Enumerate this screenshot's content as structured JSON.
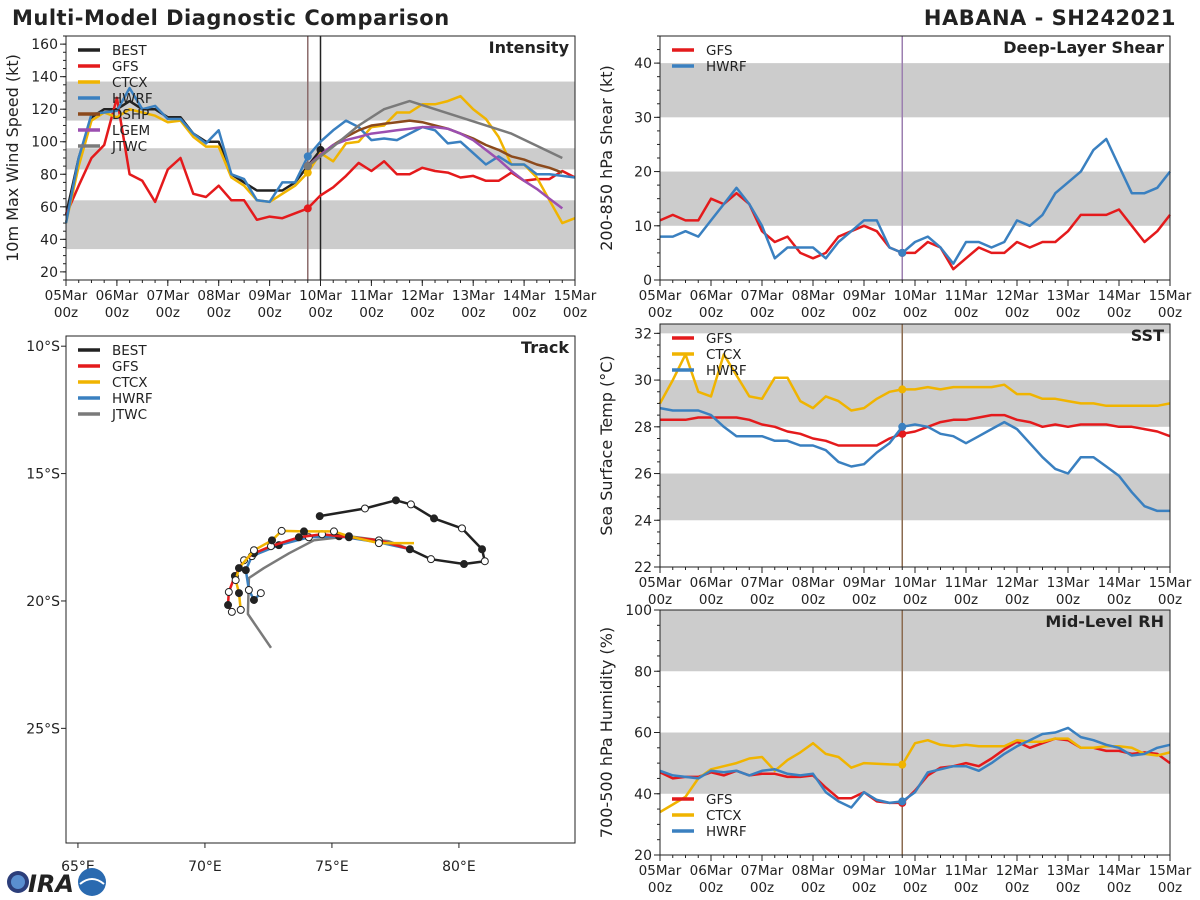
{
  "header": {
    "title": "Multi-Model Diagnostic Comparison",
    "storm": "HABANA - SH242021"
  },
  "logo": {
    "text": "CIRA"
  },
  "time_axis": {
    "days": [
      "05Mar",
      "06Mar",
      "07Mar",
      "08Mar",
      "09Mar",
      "10Mar",
      "11Mar",
      "12Mar",
      "13Mar",
      "14Mar",
      "15Mar"
    ],
    "hour_label": "00z",
    "range_hours": [
      0,
      240
    ]
  },
  "colors": {
    "BEST": "#222222",
    "GFS": "#e41a1c",
    "CTCX": "#f0b400",
    "HWRF": "#3a80c0",
    "DSHP": "#8c4a1c",
    "LGEM": "#9b4fb0",
    "JTWC": "#7a7a7a",
    "band": "#cccccc"
  },
  "chart_data": [
    {
      "id": "intensity",
      "type": "line",
      "title": "Intensity",
      "ylabel": "10m Max Wind Speed (kt)",
      "ylim": [
        15,
        165
      ],
      "yticks": [
        20,
        40,
        60,
        80,
        100,
        120,
        140,
        160
      ],
      "bands": [
        [
          34,
          64
        ],
        [
          83,
          96
        ],
        [
          113,
          137
        ]
      ],
      "vlines": [
        {
          "hour": 114,
          "color": "#8b6b6b"
        },
        {
          "hour": 120,
          "color": "#222222"
        }
      ],
      "analysis_hour": 114,
      "series": [
        {
          "name": "BEST",
          "start_hour": 0,
          "values": [
            55,
            90,
            115,
            120,
            120,
            125,
            120,
            120,
            115,
            115,
            105,
            100,
            100,
            80,
            75,
            70,
            70,
            70,
            75,
            85,
            95
          ]
        },
        {
          "name": "GFS",
          "start_hour": 0,
          "values": [
            55,
            73,
            90,
            98,
            127,
            80,
            76,
            63,
            83,
            90,
            68,
            66,
            73,
            64,
            64,
            52,
            54,
            53,
            56,
            59,
            67,
            72,
            79,
            87,
            82,
            88,
            80,
            80,
            84,
            82,
            81,
            78,
            79,
            76,
            76,
            81,
            76,
            77,
            77,
            82,
            78
          ]
        },
        {
          "name": "CTCX",
          "start_hour": 0,
          "values": [
            50,
            85,
            113,
            118,
            115,
            120,
            118,
            116,
            112,
            113,
            103,
            97,
            97,
            78,
            73,
            64,
            63,
            68,
            73,
            81,
            93,
            88,
            99,
            100,
            109,
            110,
            118,
            118,
            123,
            123,
            125,
            128,
            120,
            114,
            103,
            86,
            86,
            78,
            64,
            50,
            53
          ]
        },
        {
          "name": "HWRF",
          "start_hour": 0,
          "values": [
            50,
            90,
            117,
            118,
            119,
            133,
            120,
            122,
            114,
            114,
            105,
            99,
            107,
            80,
            77,
            64,
            63,
            75,
            75,
            91,
            100,
            107,
            113,
            109,
            101,
            102,
            101,
            105,
            109,
            107,
            99,
            100,
            93,
            86,
            91,
            86,
            86,
            80,
            80,
            79,
            78
          ]
        },
        {
          "name": "DSHP",
          "start_hour": 114,
          "values": [
            85,
            92,
            98,
            103,
            107,
            110,
            111,
            112,
            113,
            112,
            110,
            108,
            105,
            102,
            98,
            95,
            91,
            89,
            86,
            84,
            81
          ]
        },
        {
          "name": "LGEM",
          "start_hour": 114,
          "values": [
            85,
            92,
            98,
            101,
            103,
            105,
            106,
            107,
            108,
            109,
            109,
            108,
            105,
            101,
            95,
            89,
            82,
            76,
            71,
            65,
            59
          ]
        },
        {
          "name": "JTWC",
          "hours": [
            114,
            126,
            138,
            150,
            162,
            186,
            210,
            234
          ],
          "values": [
            85,
            97,
            110,
            120,
            125,
            115,
            105,
            90
          ]
        }
      ]
    },
    {
      "id": "shear",
      "type": "line",
      "title": "Deep-Layer Shear",
      "ylabel": "200-850 hPa Shear (kt)",
      "ylim": [
        0,
        45
      ],
      "yticks": [
        0,
        10,
        20,
        30,
        40
      ],
      "bands": [
        [
          10,
          20
        ],
        [
          30,
          40
        ]
      ],
      "vlines": [
        {
          "hour": 114,
          "color": "#9c7fb0"
        }
      ],
      "analysis_hour": 114,
      "series": [
        {
          "name": "GFS",
          "start_hour": 0,
          "values": [
            11,
            12,
            11,
            11,
            15,
            14,
            16,
            14,
            9,
            7,
            8,
            5,
            4,
            5,
            8,
            9,
            10,
            9,
            6,
            5,
            5,
            7,
            6,
            2,
            4,
            6,
            5,
            5,
            7,
            6,
            7,
            7,
            9,
            12,
            12,
            12,
            13,
            10,
            7,
            9,
            12
          ]
        },
        {
          "name": "HWRF",
          "start_hour": 0,
          "values": [
            8,
            8,
            9,
            8,
            11,
            14,
            17,
            14,
            10,
            4,
            6,
            6,
            6,
            4,
            7,
            9,
            11,
            11,
            6,
            5,
            7,
            8,
            6,
            3,
            7,
            7,
            6,
            7,
            11,
            10,
            12,
            16,
            18,
            20,
            24,
            26,
            21,
            16,
            16,
            17,
            20
          ]
        }
      ]
    },
    {
      "id": "sst",
      "type": "line",
      "title": "SST",
      "ylabel": "Sea Surface Temp (°C)",
      "ylim": [
        22,
        32.4
      ],
      "yticks": [
        22,
        24,
        26,
        28,
        30,
        32
      ],
      "bands": [
        [
          24,
          26
        ],
        [
          28,
          30
        ],
        [
          32,
          32.4
        ]
      ],
      "vlines": [
        {
          "hour": 114,
          "color": "#8b6b50"
        }
      ],
      "analysis_hour": 114,
      "series": [
        {
          "name": "GFS",
          "start_hour": 0,
          "values": [
            28.3,
            28.3,
            28.3,
            28.4,
            28.4,
            28.4,
            28.4,
            28.3,
            28.1,
            28.0,
            27.8,
            27.7,
            27.5,
            27.4,
            27.2,
            27.2,
            27.2,
            27.2,
            27.5,
            27.7,
            27.8,
            28.0,
            28.2,
            28.3,
            28.3,
            28.4,
            28.5,
            28.5,
            28.3,
            28.2,
            28.0,
            28.1,
            28.0,
            28.1,
            28.1,
            28.1,
            28.0,
            28.0,
            27.9,
            27.8,
            27.6
          ]
        },
        {
          "name": "CTCX",
          "start_hour": 0,
          "values": [
            29.0,
            30.0,
            31.1,
            29.5,
            29.3,
            31.1,
            30.2,
            29.3,
            29.2,
            30.1,
            30.1,
            29.1,
            28.8,
            29.3,
            29.1,
            28.7,
            28.8,
            29.2,
            29.5,
            29.6,
            29.6,
            29.7,
            29.6,
            29.7,
            29.7,
            29.7,
            29.7,
            29.8,
            29.4,
            29.4,
            29.2,
            29.2,
            29.1,
            29.0,
            29.0,
            28.9,
            28.9,
            28.9,
            28.9,
            28.9,
            29.0
          ]
        },
        {
          "name": "HWRF",
          "start_hour": 0,
          "values": [
            28.8,
            28.7,
            28.7,
            28.7,
            28.5,
            28.0,
            27.6,
            27.6,
            27.6,
            27.4,
            27.4,
            27.2,
            27.2,
            27.0,
            26.5,
            26.3,
            26.4,
            26.9,
            27.3,
            28.0,
            28.1,
            28.0,
            27.7,
            27.6,
            27.3,
            27.6,
            27.9,
            28.2,
            27.9,
            27.3,
            26.7,
            26.2,
            26.0,
            26.7,
            26.7,
            26.3,
            25.9,
            25.2,
            24.6,
            24.4,
            24.4
          ]
        }
      ]
    },
    {
      "id": "rh",
      "type": "line",
      "title": "Mid-Level RH",
      "ylabel": "700-500 hPa Humidity (%)",
      "ylim": [
        20,
        100
      ],
      "yticks": [
        20,
        40,
        60,
        80,
        100
      ],
      "bands": [
        [
          40,
          60
        ],
        [
          80,
          100
        ]
      ],
      "vlines": [
        {
          "hour": 114,
          "color": "#8b6b50"
        }
      ],
      "analysis_hour": 114,
      "legend_position": "bottom-left",
      "series": [
        {
          "name": "GFS",
          "start_hour": 0,
          "values": [
            47,
            45,
            45.5,
            45.5,
            47,
            46,
            47.5,
            46,
            46.5,
            46.5,
            45.5,
            45.5,
            46,
            42,
            38.5,
            38.5,
            40.5,
            37.5,
            37,
            37,
            41,
            46,
            48.5,
            49,
            50,
            49,
            51.5,
            54.5,
            57,
            55,
            56.5,
            58,
            57.5,
            55,
            55,
            54,
            54,
            53,
            53.5,
            53,
            50
          ]
        },
        {
          "name": "CTCX",
          "start_hour": 0,
          "values": [
            34,
            36.5,
            39,
            45,
            48,
            49,
            50,
            51.5,
            52,
            47.5,
            51,
            53.5,
            56.5,
            53,
            52,
            48.5,
            50,
            49.8,
            49.6,
            49.5,
            56.5,
            57.5,
            56,
            55.5,
            56,
            55.5,
            55.5,
            55.5,
            57.5,
            57,
            57,
            58,
            58,
            55,
            55,
            55.5,
            55.5,
            55,
            53,
            52.5,
            53.5
          ]
        },
        {
          "name": "HWRF",
          "start_hour": 0,
          "values": [
            47.5,
            46,
            45.5,
            45,
            47.5,
            47,
            47.5,
            46,
            47.5,
            48,
            46.5,
            46,
            46.5,
            40.5,
            37.5,
            35.5,
            40.5,
            38,
            37,
            37.5,
            40.5,
            47,
            48,
            49,
            49,
            47.5,
            50,
            53,
            55.5,
            57.5,
            59.5,
            60,
            61.5,
            58.5,
            57.5,
            56,
            55,
            52.5,
            53,
            55,
            56
          ]
        }
      ]
    },
    {
      "id": "track",
      "type": "line",
      "title": "Track",
      "xlim_lon_e": [
        64.53,
        84.57
      ],
      "ylim_lat_s": [
        9.6,
        29.5
      ],
      "lon_ticks": [
        {
          "v": 65,
          "label": "65°E"
        },
        {
          "v": 70,
          "label": "70°E"
        },
        {
          "v": 75,
          "label": "75°E"
        },
        {
          "v": 80,
          "label": "80°E"
        }
      ],
      "lat_ticks": [
        {
          "v": 10,
          "label": "10°S"
        },
        {
          "v": 15,
          "label": "15°S"
        },
        {
          "v": 20,
          "label": "20°S"
        },
        {
          "v": 25,
          "label": "25°S"
        }
      ],
      "series": [
        {
          "name": "BEST",
          "lon": [
            74.52,
            76.3,
            77.52,
            78.11,
            79.02,
            80.12,
            80.91,
            81.02,
            80.2,
            78.9,
            78.07
          ],
          "lat": [
            16.67,
            16.37,
            16.05,
            16.21,
            16.76,
            17.15,
            17.97,
            18.44,
            18.55,
            18.36,
            17.97
          ]
        },
        {
          "name": "GFS",
          "lon": [
            78.07,
            76.85,
            75.67,
            74.61,
            73.7,
            72.6,
            71.93,
            71.54,
            71.18,
            70.94,
            70.91,
            71.06
          ],
          "lat": [
            17.97,
            17.62,
            17.5,
            17.38,
            17.5,
            17.85,
            18.13,
            18.4,
            19.02,
            19.65,
            20.16,
            20.43
          ]
        },
        {
          "name": "CTCX",
          "lon": [
            78.23,
            76.85,
            75.67,
            75.08,
            73.9,
            73.02,
            72.64,
            71.93,
            71.34,
            71.21,
            71.34,
            71.41
          ],
          "lat": [
            17.73,
            17.73,
            17.46,
            17.27,
            17.27,
            17.25,
            17.62,
            18.01,
            18.71,
            19.18,
            19.69,
            20.35
          ]
        },
        {
          "name": "HWRF",
          "lon": [
            78.07,
            76.85,
            75.28,
            74.09,
            72.91,
            71.85,
            71.61,
            71.73,
            71.93,
            72.2
          ],
          "lat": [
            17.97,
            17.7,
            17.46,
            17.5,
            17.81,
            18.24,
            18.79,
            19.57,
            19.96,
            19.69
          ]
        },
        {
          "name": "JTWC",
          "lon": [
            78.07,
            77.24,
            75.67,
            74.29,
            73.31,
            72.32,
            71.73,
            71.69,
            72.6
          ],
          "lat": [
            17.97,
            17.66,
            17.46,
            17.62,
            18.13,
            18.71,
            19.1,
            20.51,
            21.84
          ]
        }
      ]
    }
  ]
}
